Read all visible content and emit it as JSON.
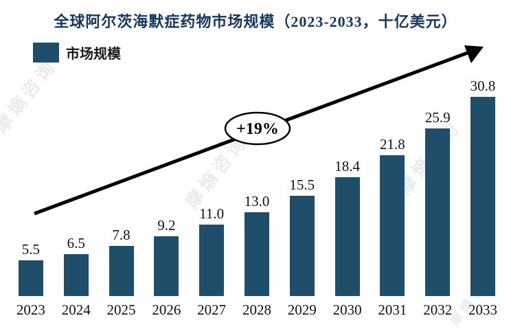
{
  "title": "全球阿尔茨海默症药物市场规模（2023-2033，十亿美元）",
  "legend": {
    "label": "市场规模"
  },
  "annotation": {
    "growth_label": "+19%"
  },
  "watermark": {
    "text": "摩熵咨询"
  },
  "colors": {
    "bar": "#1f4e6b",
    "title": "#16365d",
    "arrow": "#000000"
  },
  "chart_data": {
    "type": "bar",
    "title": "全球阿尔茨海默症药物市场规模（2023-2033，十亿美元）",
    "categories": [
      "2023",
      "2024",
      "2025",
      "2026",
      "2027",
      "2028",
      "2029",
      "2030",
      "2031",
      "2032",
      "2033"
    ],
    "values": [
      5.5,
      6.5,
      7.8,
      9.2,
      11.0,
      13.0,
      15.5,
      18.4,
      21.8,
      25.9,
      30.8
    ],
    "series_name": "市场规模",
    "xlabel": "",
    "ylabel": "",
    "ylim": [
      0,
      32
    ],
    "grid": false,
    "legend_position": "top-left",
    "annotations": [
      "+19%"
    ],
    "value_format": "one-decimal"
  }
}
